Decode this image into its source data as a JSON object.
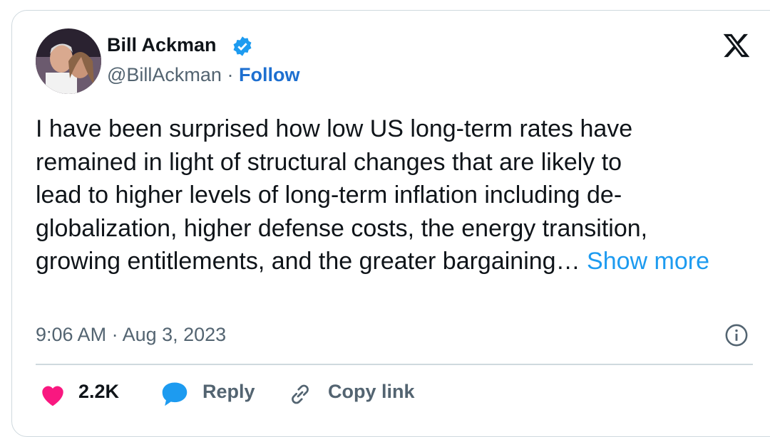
{
  "author": {
    "name": "Bill Ackman",
    "handle": "@BillAckman",
    "separator": "·",
    "follow": "Follow"
  },
  "tweet": {
    "lines": [
      "I have been surprised how low US long-term rates have",
      "remained in light of structural changes that are likely to",
      "lead to higher levels of long-term inflation including de-",
      "globalization, higher defense costs, the energy transition,",
      "growing entitlements, and the greater bargaining…"
    ],
    "show_more": "Show more",
    "timestamp": "9:06 AM · Aug 3, 2023"
  },
  "actions": {
    "likes": "2.2K",
    "reply": "Reply",
    "copy_link": "Copy link"
  }
}
